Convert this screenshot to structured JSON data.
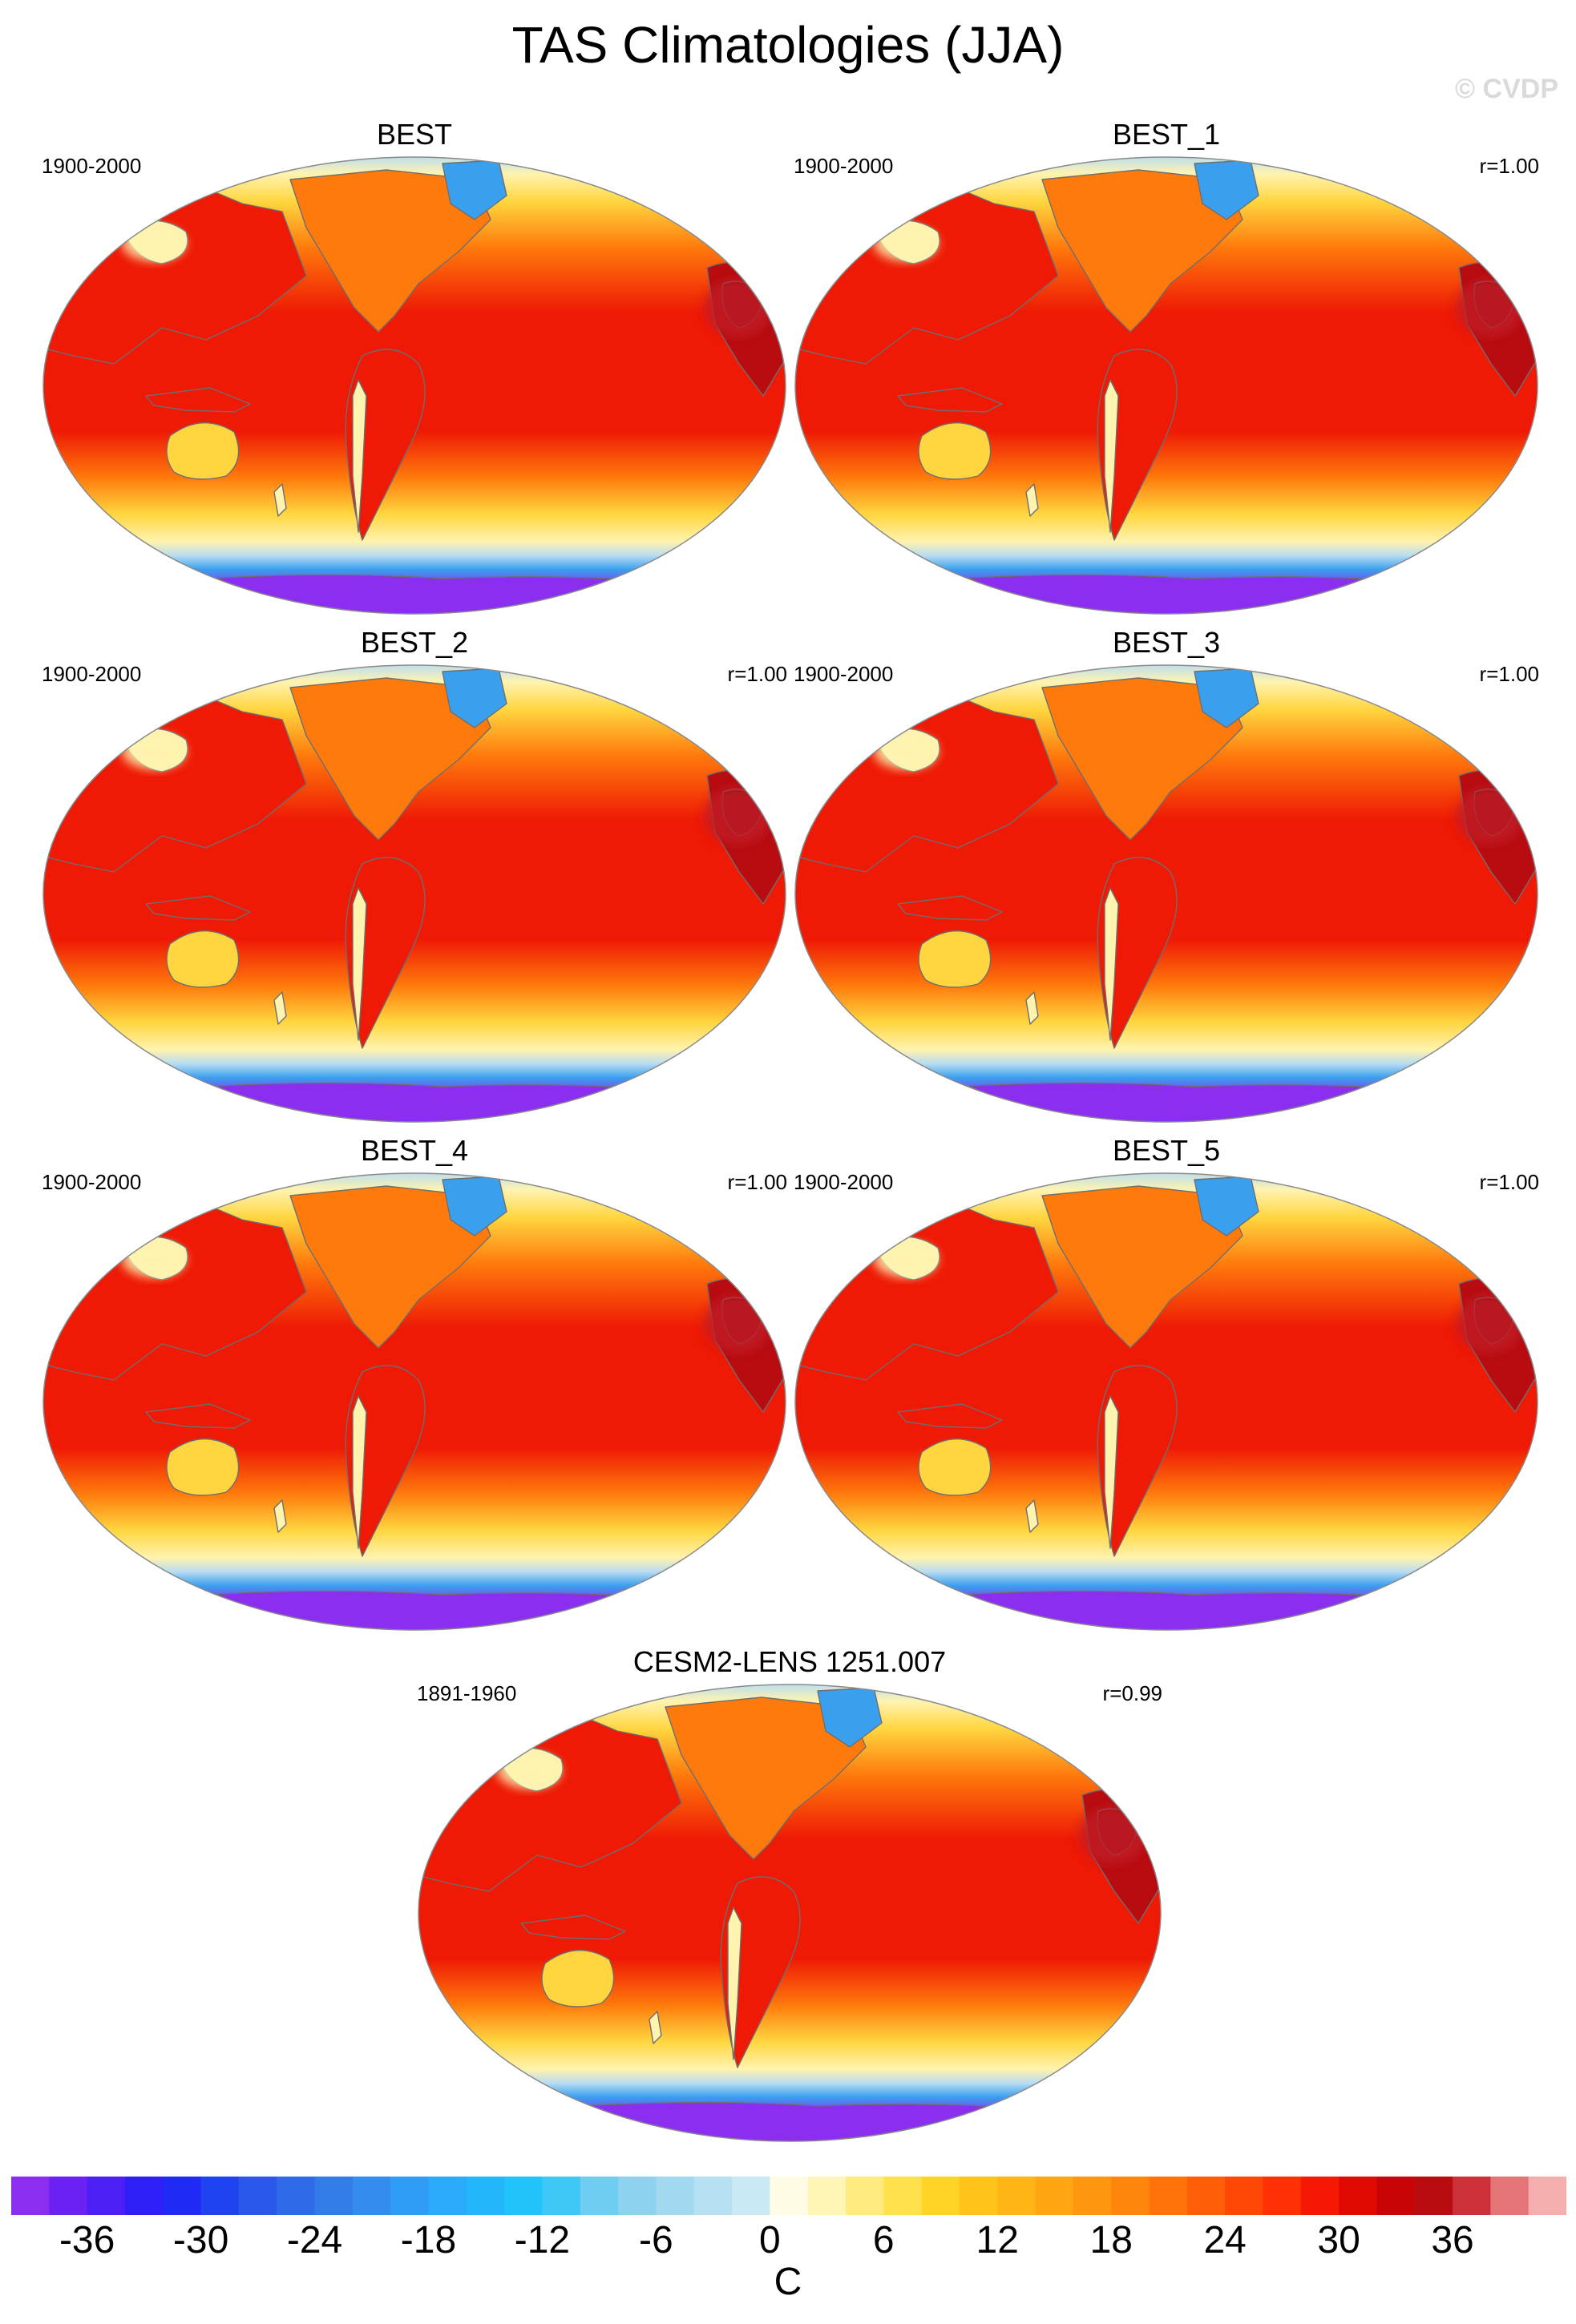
{
  "title": "TAS Climatologies (JJA)",
  "watermark": "© CVDP",
  "panels": [
    {
      "title": "BEST",
      "period": "1900-2000",
      "corr": ""
    },
    {
      "title": "BEST_1",
      "period": "1900-2000",
      "corr": "r=1.00"
    },
    {
      "title": "BEST_2",
      "period": "1900-2000",
      "corr": "r=1.00"
    },
    {
      "title": "BEST_3",
      "period": "1900-2000",
      "corr": "r=1.00"
    },
    {
      "title": "BEST_4",
      "period": "1900-2000",
      "corr": "r=1.00"
    },
    {
      "title": "BEST_5",
      "period": "1900-2000",
      "corr": "r=1.00"
    },
    {
      "title": "CESM2-LENS 1251.007",
      "period": "1891-1960",
      "corr": "r=0.99"
    }
  ],
  "colorbar": {
    "units": "C",
    "tick_labels": [
      "-36",
      "-30",
      "-24",
      "-18",
      "-12",
      "-6",
      "0",
      "6",
      "12",
      "18",
      "24",
      "30",
      "36"
    ],
    "tick_values": [
      -36,
      -30,
      -24,
      -18,
      -12,
      -6,
      0,
      6,
      12,
      18,
      24,
      30,
      36
    ],
    "boundaries": [
      -40,
      -38,
      -36,
      -34,
      -32,
      -30,
      -28,
      -26,
      -24,
      -22,
      -20,
      -18,
      -16,
      -14,
      -12,
      -10,
      -8,
      -6,
      -4,
      -2,
      0,
      2,
      4,
      6,
      8,
      10,
      12,
      14,
      16,
      18,
      20,
      22,
      24,
      26,
      28,
      30,
      32,
      34,
      36,
      38,
      40,
      42
    ],
    "colors": [
      "#8b2ef0",
      "#6a21f2",
      "#4c1ff5",
      "#2f1ff7",
      "#1f2bf5",
      "#1f43ee",
      "#2a58ea",
      "#2f6ae8",
      "#327ce8",
      "#338cee",
      "#2f9cf5",
      "#2aaaf8",
      "#24b6fb",
      "#22c2fb",
      "#3fc8f5",
      "#6ecdf0",
      "#8dd3ef",
      "#a3d9f0",
      "#b5e1f3",
      "#c9e9f5",
      "#fffce6",
      "#fff5b5",
      "#ffeb80",
      "#ffe14d",
      "#ffd325",
      "#ffc31a",
      "#ffb515",
      "#ffa612",
      "#ff9610",
      "#ff860d",
      "#ff730a",
      "#ff5e08",
      "#ff4806",
      "#ff3004",
      "#f51802",
      "#e00a02",
      "#c80404",
      "#b80c10",
      "#cc3038",
      "#e47476",
      "#f4aeae"
    ]
  },
  "map_colors": {
    "tropics": "#ee1a05",
    "mid": "#ff7a0c",
    "subpolar": "#ffd640",
    "pale": "#fff3b0",
    "polar_ice": "#b8dcf2",
    "ice_blue": "#3aa0ee",
    "antarctic": "#8b2ef0",
    "land_hot": "#b80c10",
    "coast": "#6e6e6e"
  }
}
